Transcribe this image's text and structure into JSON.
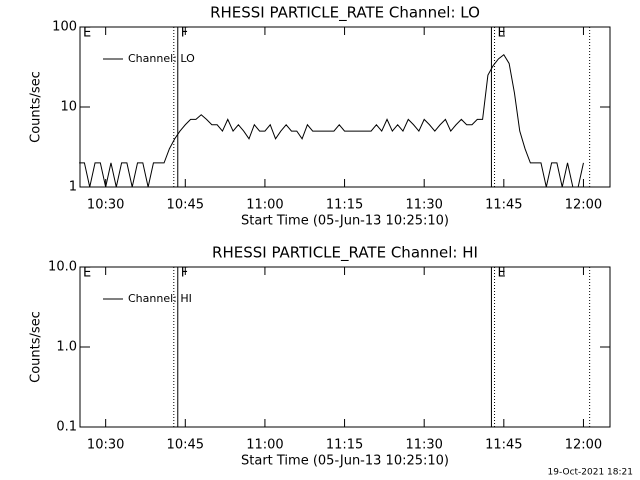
{
  "chart_data": [
    {
      "type": "line",
      "title": "RHESSI PARTICLE_RATE Channel: LO",
      "x_label": "Start Time (05-Jun-13 10:25:10)",
      "y_label": "Counts/sec",
      "log_y": true,
      "ylim": [
        1,
        100
      ],
      "yticks": [
        1,
        10,
        100
      ],
      "xlim": [
        "10:25:10",
        "12:05"
      ],
      "xticks": [
        "10:30",
        "10:45",
        "11:00",
        "11:15",
        "11:30",
        "11:45",
        "12:00"
      ],
      "markers": [
        {
          "x": "10:25:10",
          "style": "solid",
          "label": "E"
        },
        {
          "x": "10:42:50",
          "style": "dotted"
        },
        {
          "x": "10:43:35",
          "style": "solid",
          "label": "F"
        },
        {
          "x": "11:42:40",
          "style": "solid"
        },
        {
          "x": "11:43:15",
          "style": "dotted",
          "label": "E"
        },
        {
          "x": "12:01:10",
          "style": "dotted"
        }
      ],
      "x": [
        "10:25",
        "10:26",
        "10:27",
        "10:28",
        "10:29",
        "10:30",
        "10:31",
        "10:32",
        "10:33",
        "10:34",
        "10:35",
        "10:36",
        "10:37",
        "10:38",
        "10:39",
        "10:40",
        "10:41",
        "10:42",
        "10:43",
        "10:44",
        "10:45",
        "10:46",
        "10:47",
        "10:48",
        "10:49",
        "10:50",
        "10:51",
        "10:52",
        "10:53",
        "10:54",
        "10:55",
        "10:56",
        "10:57",
        "10:58",
        "10:59",
        "11:00",
        "11:01",
        "11:02",
        "11:03",
        "11:04",
        "11:05",
        "11:06",
        "11:07",
        "11:08",
        "11:09",
        "11:10",
        "11:11",
        "11:12",
        "11:13",
        "11:14",
        "11:15",
        "11:16",
        "11:17",
        "11:18",
        "11:19",
        "11:20",
        "11:21",
        "11:22",
        "11:23",
        "11:24",
        "11:25",
        "11:26",
        "11:27",
        "11:28",
        "11:29",
        "11:30",
        "11:31",
        "11:32",
        "11:33",
        "11:34",
        "11:35",
        "11:36",
        "11:37",
        "11:38",
        "11:39",
        "11:40",
        "11:41",
        "11:42",
        "11:43",
        "11:44",
        "11:45",
        "11:46",
        "11:47",
        "11:48",
        "11:49",
        "11:50",
        "11:51",
        "11:52",
        "11:53",
        "11:54",
        "11:55",
        "11:56",
        "11:57",
        "11:58",
        "11:59",
        "12:00"
      ],
      "series": [
        {
          "name": "Channel: LO",
          "color": "#000000",
          "values": [
            2,
            2,
            1,
            2,
            2,
            1,
            2,
            1,
            2,
            2,
            1,
            2,
            2,
            1,
            2,
            2,
            2,
            3,
            4,
            5,
            6,
            7,
            7,
            8,
            7,
            6,
            6,
            5,
            7,
            5,
            6,
            5,
            4,
            6,
            5,
            5,
            6,
            4,
            5,
            6,
            5,
            5,
            4,
            6,
            5,
            5,
            5,
            5,
            5,
            6,
            5,
            5,
            5,
            5,
            5,
            5,
            6,
            5,
            7,
            5,
            6,
            5,
            7,
            6,
            5,
            7,
            6,
            5,
            6,
            7,
            5,
            6,
            7,
            6,
            6,
            7,
            7,
            25,
            33,
            40,
            45,
            35,
            15,
            5,
            3,
            2,
            2,
            2,
            1,
            2,
            2,
            1,
            2,
            1,
            1,
            2
          ]
        }
      ]
    },
    {
      "type": "line",
      "title": "RHESSI PARTICLE_RATE Channel: HI",
      "x_label": "Start Time (05-Jun-13 10:25:10)",
      "y_label": "Counts/sec",
      "log_y": true,
      "ylim": [
        0.1,
        10
      ],
      "yticks": [
        0.1,
        {
          "value": 1,
          "label": "1.0"
        },
        {
          "value": 10,
          "label": "10.0"
        }
      ],
      "xlim": [
        "10:25:10",
        "12:05"
      ],
      "xticks": [
        "10:30",
        "10:45",
        "11:00",
        "11:15",
        "11:30",
        "11:45",
        "12:00"
      ],
      "markers": [
        {
          "x": "10:25:10",
          "style": "solid",
          "label": "E"
        },
        {
          "x": "10:42:50",
          "style": "dotted"
        },
        {
          "x": "10:43:35",
          "style": "solid",
          "label": "F"
        },
        {
          "x": "11:42:40",
          "style": "solid"
        },
        {
          "x": "11:43:15",
          "style": "dotted",
          "label": "E"
        },
        {
          "x": "12:01:10",
          "style": "dotted"
        }
      ],
      "x": [],
      "series": [
        {
          "name": "Channel: HI",
          "color": "#000000",
          "values": []
        }
      ]
    }
  ],
  "footer": "19-Oct-2021 18:21"
}
